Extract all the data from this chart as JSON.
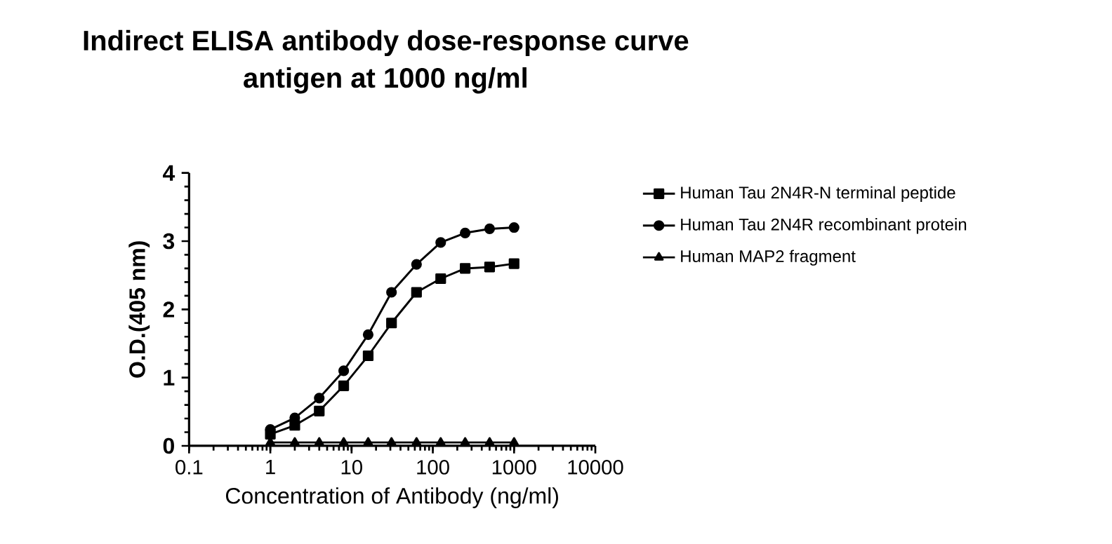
{
  "chart_data": {
    "type": "line",
    "title": "Indirect ELISA antibody dose-response curve",
    "subtitle": "antigen at 1000 ng/ml",
    "xlabel": "Concentration of Antibody (ng/ml)",
    "ylabel": "O.D.(405 nm)",
    "log": "x",
    "xlim": [
      0.1,
      10000
    ],
    "xticks": [
      0.1,
      1,
      10,
      100,
      1000,
      10000
    ],
    "ylim": [
      0,
      4
    ],
    "yticks": [
      0,
      1,
      2,
      3,
      4
    ],
    "grid": false,
    "legend": "right",
    "line_style": "solid",
    "x": [
      1,
      2,
      4,
      8,
      16,
      31,
      63,
      125,
      250,
      500,
      1000
    ],
    "series": [
      {
        "name": "Human Tau 2N4R-N terminal peptide",
        "color": "#000000",
        "marker": "square",
        "values": [
          0.17,
          0.3,
          0.51,
          0.88,
          1.32,
          1.8,
          2.25,
          2.45,
          2.6,
          2.62,
          2.67
        ]
      },
      {
        "name": "Human Tau 2N4R recombinant protein",
        "color": "#000000",
        "marker": "circle",
        "values": [
          0.24,
          0.41,
          0.7,
          1.1,
          1.63,
          2.25,
          2.66,
          2.98,
          3.12,
          3.18,
          3.2
        ]
      },
      {
        "name": "Human MAP2 fragment",
        "color": "#000000",
        "marker": "triangle",
        "values": [
          0.05,
          0.05,
          0.05,
          0.05,
          0.05,
          0.05,
          0.05,
          0.05,
          0.05,
          0.05,
          0.05
        ]
      }
    ]
  }
}
